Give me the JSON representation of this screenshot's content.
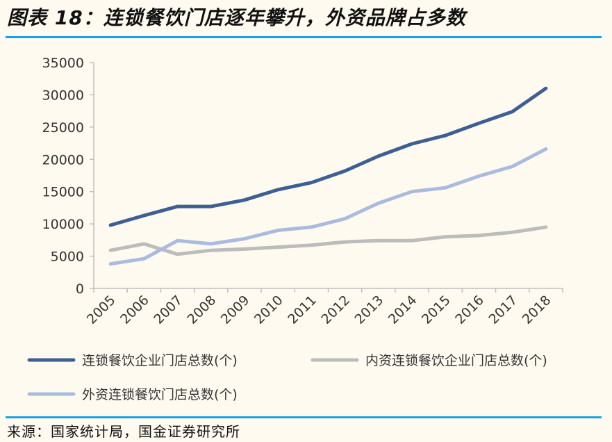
{
  "header": {
    "title": "图表 18：连锁餐饮门店逐年攀升，外资品牌占多数"
  },
  "footer": {
    "source": "来源：国家统计局，国金证券研究所"
  },
  "colors": {
    "accent_rule": "#1aa0e0",
    "background": "#fefaf0",
    "axis": "#bfbfbf"
  },
  "chart_data": {
    "type": "line",
    "title": "",
    "xlabel": "",
    "ylabel": "",
    "ylim": [
      0,
      35000
    ],
    "yticks": [
      0,
      5000,
      10000,
      15000,
      20000,
      25000,
      30000,
      35000
    ],
    "ytick_labels": [
      "0",
      "5000",
      "10000",
      "15000",
      "20000",
      "25000",
      "30000",
      "35000"
    ],
    "categories": [
      "2005",
      "2006",
      "2007",
      "2008",
      "2009",
      "2010",
      "2011",
      "2012",
      "2013",
      "2014",
      "2015",
      "2016",
      "2017",
      "2018"
    ],
    "grid": false,
    "legend_position": "bottom",
    "series": [
      {
        "name": "连锁餐饮企业门店总数(个)",
        "color": "#3d5f94",
        "values": [
          9800,
          11300,
          12700,
          12700,
          13700,
          15300,
          16400,
          18200,
          20500,
          22400,
          23700,
          25600,
          27400,
          31000
        ]
      },
      {
        "name": "内资连锁餐饮企业门店总数(个)",
        "color": "#bcbcbc",
        "values": [
          5900,
          6900,
          5300,
          5900,
          6100,
          6400,
          6700,
          7200,
          7400,
          7400,
          8000,
          8200,
          8700,
          9500
        ]
      },
      {
        "name": "外资连锁餐饮门店总数(个)",
        "color": "#a9bcdf",
        "values": [
          3800,
          4600,
          7400,
          6900,
          7700,
          9000,
          9500,
          10800,
          13200,
          15000,
          15600,
          17400,
          18900,
          21600
        ]
      }
    ]
  }
}
